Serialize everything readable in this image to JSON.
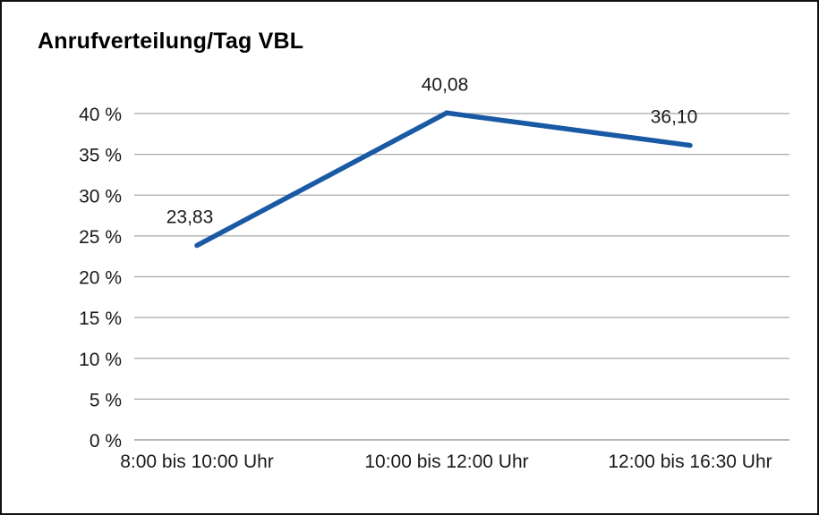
{
  "chart_data": {
    "type": "line",
    "title": "Anrufverteilung/Tag VBL",
    "categories": [
      "8:00 bis 10:00 Uhr",
      "10:00 bis 12:00 Uhr",
      "12:00 bis 16:30 Uhr"
    ],
    "values": [
      23.83,
      40.08,
      36.1
    ],
    "data_labels": [
      "23,83",
      "40,08",
      "36,10"
    ],
    "y_axis": {
      "min": 0,
      "max": 40,
      "step": 5,
      "tick_labels": [
        "0 %",
        "5 %",
        "10 %",
        "15 %",
        "20 %",
        "25 %",
        "30 %",
        "35 %",
        "40 %"
      ]
    },
    "xlabel": "",
    "ylabel": "",
    "grid": true,
    "legend_position": "none",
    "colors": {
      "line": "#1a5aa5",
      "grid": "#a9a9a9",
      "axis": "#8c8c8c",
      "text": "#1a1a1a",
      "frame": "#111111",
      "background": "#ffffff"
    }
  }
}
